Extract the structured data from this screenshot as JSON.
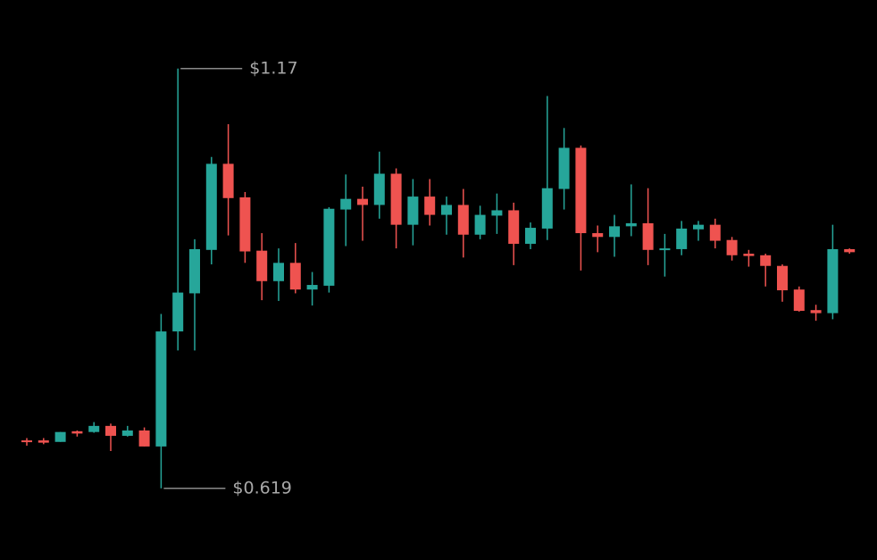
{
  "chart_data": {
    "type": "candlestick",
    "up_color": "#26a69a",
    "down_color": "#ef5350",
    "ylim": [
      0.525,
      1.26
    ],
    "open": [
      0.682,
      0.682,
      0.68,
      0.694,
      0.693,
      0.701,
      0.688,
      0.695,
      0.674,
      0.825,
      0.875,
      0.932,
      1.045,
      1.001,
      0.931,
      0.891,
      0.915,
      0.88,
      0.885,
      0.985,
      0.999,
      0.991,
      1.032,
      0.965,
      1.002,
      0.978,
      0.991,
      0.952,
      0.977,
      0.984,
      0.94,
      0.96,
      1.012,
      1.066,
      0.954,
      0.949,
      0.963,
      0.967,
      0.932,
      0.933,
      0.959,
      0.965,
      0.945,
      0.927,
      0.925,
      0.911,
      0.88,
      0.853,
      0.849,
      0.933
    ],
    "high": [
      0.685,
      0.685,
      0.693,
      0.695,
      0.706,
      0.704,
      0.701,
      0.699,
      0.848,
      1.17,
      0.946,
      1.054,
      1.097,
      1.008,
      0.954,
      0.934,
      0.941,
      0.903,
      0.988,
      1.031,
      1.015,
      1.061,
      1.039,
      1.025,
      1.025,
      1.002,
      1.012,
      0.99,
      1.006,
      0.994,
      0.968,
      1.134,
      1.092,
      1.069,
      0.964,
      0.978,
      1.018,
      1.013,
      0.953,
      0.97,
      0.97,
      0.973,
      0.949,
      0.932,
      0.927,
      0.913,
      0.884,
      0.86,
      0.965,
      0.934
    ],
    "low": [
      0.675,
      0.677,
      0.68,
      0.687,
      0.692,
      0.668,
      0.687,
      0.674,
      0.619,
      0.8,
      0.8,
      0.913,
      0.951,
      0.915,
      0.866,
      0.865,
      0.875,
      0.859,
      0.876,
      0.937,
      0.944,
      0.973,
      0.934,
      0.938,
      0.964,
      0.952,
      0.922,
      0.946,
      0.953,
      0.912,
      0.933,
      0.945,
      0.985,
      0.905,
      0.929,
      0.923,
      0.95,
      0.912,
      0.897,
      0.925,
      0.944,
      0.934,
      0.918,
      0.91,
      0.884,
      0.864,
      0.851,
      0.839,
      0.841,
      0.927
    ],
    "close": [
      0.68,
      0.679,
      0.693,
      0.691,
      0.701,
      0.688,
      0.695,
      0.674,
      0.825,
      0.876,
      0.933,
      1.045,
      1.0,
      0.93,
      0.891,
      0.915,
      0.88,
      0.886,
      0.986,
      0.999,
      0.991,
      1.032,
      0.965,
      1.002,
      0.978,
      0.991,
      0.952,
      0.978,
      0.984,
      0.94,
      0.961,
      1.013,
      1.066,
      0.954,
      0.949,
      0.963,
      0.967,
      0.932,
      0.934,
      0.96,
      0.965,
      0.944,
      0.925,
      0.924,
      0.911,
      0.879,
      0.852,
      0.849,
      0.933,
      0.929
    ],
    "annotations": [
      {
        "value": 1.17,
        "label": "$1.17"
      },
      {
        "value": 0.619,
        "label": "$0.619"
      }
    ]
  }
}
